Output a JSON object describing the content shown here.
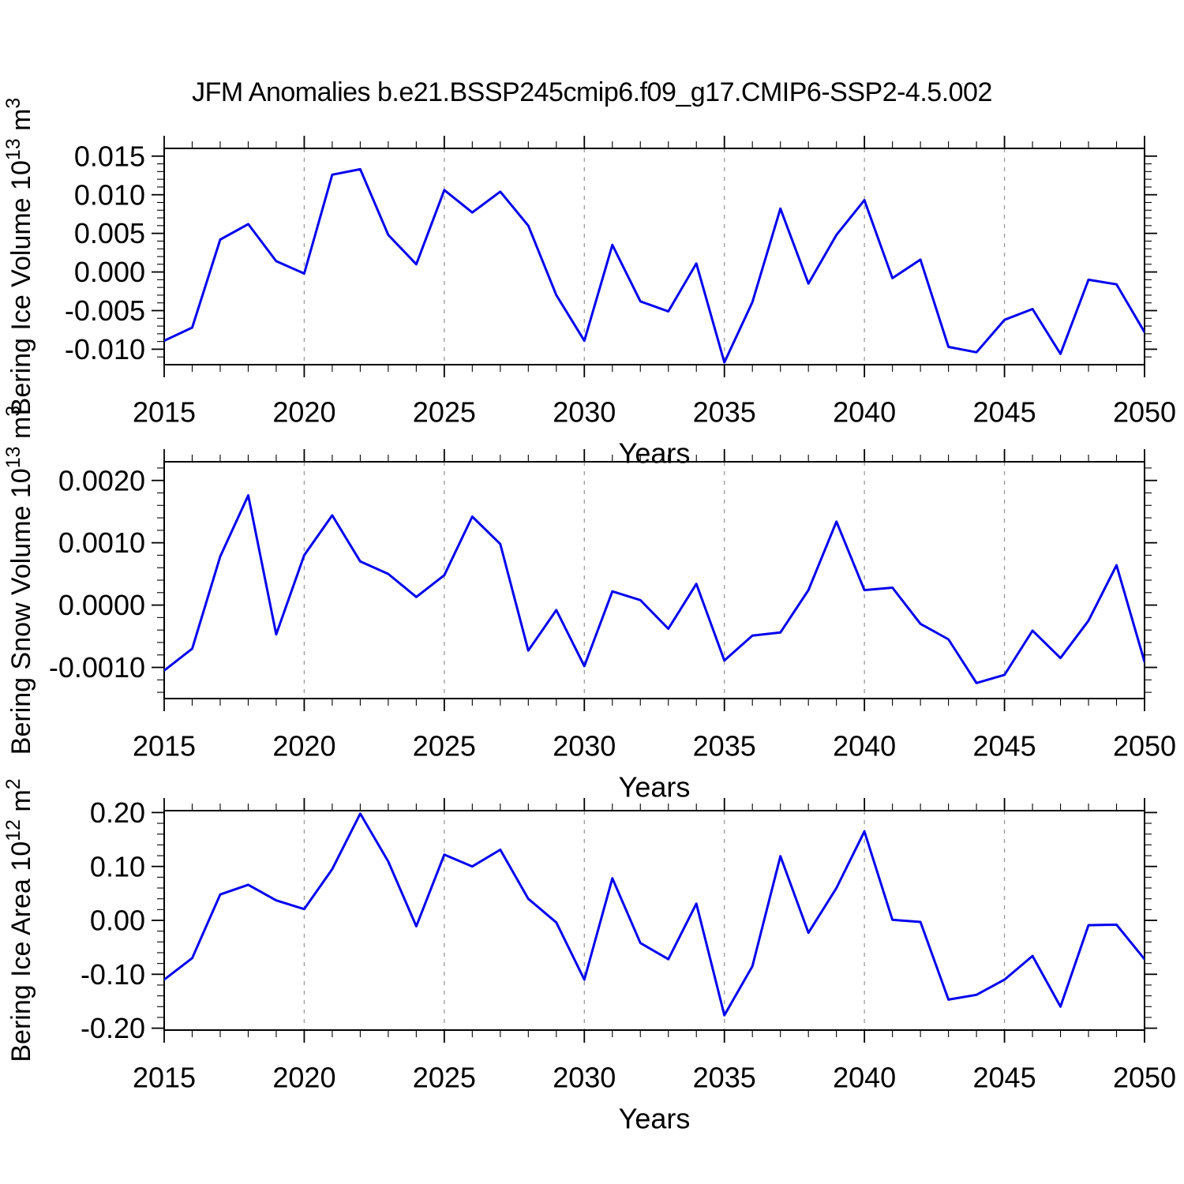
{
  "chart_data": {
    "type": "line",
    "title": "JFM Anomalies b.e21.BSSP245cmip6.f09_g17.CMIP6-SSP2-4.5.002",
    "line_color": "#0000ee",
    "grid_color": "#999999",
    "axis_color": "#000000",
    "x": {
      "label": "Years",
      "start": 2015,
      "end": 2050,
      "major_step": 5,
      "gridlines": [
        2020,
        2025,
        2030,
        2035,
        2040,
        2045
      ],
      "tick_labels": [
        "2015",
        "2020",
        "2025",
        "2030",
        "2035",
        "2040",
        "2045",
        "2050"
      ],
      "grid": "vertical-dashed",
      "legend": "none"
    },
    "panels": [
      {
        "id": "bering-ice-volume",
        "ylabel_segments": [
          {
            "t": "Bering Ice Volume 10"
          },
          {
            "t": "13",
            "sup": true
          },
          {
            "t": " m"
          },
          {
            "t": "3",
            "sup": true
          }
        ],
        "ylim": [
          -0.012,
          0.016
        ],
        "ytick_values": [
          0.015,
          0.01,
          0.005,
          0.0,
          -0.005,
          -0.01
        ],
        "ytick_labels": [
          "0.015",
          "0.010",
          "0.005",
          "0.000",
          "-0.005",
          "-0.010"
        ],
        "minor_step": 0.001,
        "values": [
          -0.0089,
          -0.0072,
          0.0042,
          0.0062,
          0.0014,
          -0.0002,
          0.0126,
          0.0133,
          0.0048,
          0.001,
          0.0106,
          0.0077,
          0.0104,
          0.006,
          -0.003,
          -0.0089,
          0.0035,
          -0.0038,
          -0.0051,
          0.0011,
          -0.0117,
          -0.0039,
          0.0082,
          -0.0015,
          0.0048,
          0.0093,
          -0.0008,
          0.0016,
          -0.0097,
          -0.0104,
          -0.0062,
          -0.0048,
          -0.0106,
          -0.001,
          -0.0016,
          -0.0078
        ]
      },
      {
        "id": "bering-snow-volume",
        "ylabel_segments": [
          {
            "t": "Bering Snow Volume 10"
          },
          {
            "t": "13",
            "sup": true
          },
          {
            "t": " m"
          },
          {
            "t": "3",
            "sup": true
          }
        ],
        "ylim": [
          -0.0015,
          0.0023
        ],
        "ytick_values": [
          0.002,
          0.001,
          0.0,
          -0.001
        ],
        "ytick_labels": [
          "0.0020",
          "0.0010",
          "0.0000",
          "-0.0010"
        ],
        "minor_step": 0.0002,
        "values": [
          -0.00105,
          -0.0007,
          0.00078,
          0.00176,
          -0.00047,
          0.0008,
          0.00144,
          0.0007,
          0.0005,
          0.00013,
          0.00048,
          0.00142,
          0.00098,
          -0.00073,
          -8e-05,
          -0.00098,
          0.00022,
          8e-05,
          -0.00038,
          0.00034,
          -0.00089,
          -0.00049,
          -0.00044,
          0.00024,
          0.00134,
          0.00024,
          0.00028,
          -0.0003,
          -0.00055,
          -0.00125,
          -0.00112,
          -0.00041,
          -0.00085,
          -0.00025,
          0.00064,
          -0.00091
        ]
      },
      {
        "id": "bering-ice-area",
        "ylabel_segments": [
          {
            "t": "Bering Ice Area 10"
          },
          {
            "t": "12",
            "sup": true
          },
          {
            "t": " m"
          },
          {
            "t": "2",
            "sup": true
          }
        ],
        "ylim": [
          -0.2035,
          0.2035
        ],
        "ytick_values": [
          0.2,
          0.1,
          0.0,
          -0.1,
          -0.2
        ],
        "ytick_labels": [
          "0.20",
          "0.10",
          "0.00",
          "-0.10",
          "-0.20"
        ],
        "minor_step": 0.02,
        "values": [
          -0.11,
          -0.07,
          0.048,
          0.066,
          0.037,
          0.021,
          0.095,
          0.198,
          0.109,
          -0.011,
          0.122,
          0.1,
          0.131,
          0.04,
          -0.004,
          -0.11,
          0.078,
          -0.042,
          -0.072,
          0.031,
          -0.176,
          -0.085,
          0.119,
          -0.023,
          0.06,
          0.165,
          0.001,
          -0.003,
          -0.147,
          -0.138,
          -0.11,
          -0.066,
          -0.16,
          -0.009,
          -0.008,
          -0.072
        ]
      }
    ]
  }
}
